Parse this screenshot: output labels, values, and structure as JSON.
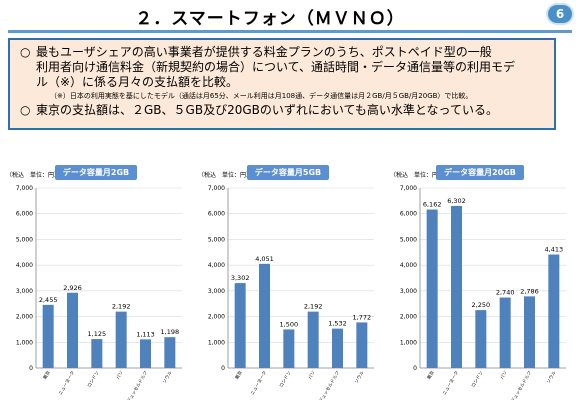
{
  "slide": {
    "title": "２．スマートフォン（ＭＶＮＯ）",
    "page_badge": "6",
    "points": [
      {
        "mark": "○",
        "line1": "最もユーザシェアの高い事業者が提供する料金プランのうち、ポストペイド型の一般",
        "line2": "利用者向け通信料金（新規契約の場合）について、通話時間・データ通信量等の利用モデ",
        "line3": "ル（※）に係る月々の支払額を比較。"
      },
      {
        "mark": "○",
        "line1": "東京の支払額は、２GB、５GB及び20GBのいずれにおいても高い水準となっている。"
      }
    ],
    "note": "（※）日本の利用実態を基にしたモデル（通話は月65分、メール利用は月108通、データ通信量は月２GB/月５GB/月20GB）で比較。"
  },
  "chart_data": [
    {
      "type": "bar",
      "title": "データ容量月2GB",
      "ylabel": "（税込　単位：円）",
      "ylim": [
        0,
        7000
      ],
      "yticks": [
        "0",
        "1,000",
        "2,000",
        "3,000",
        "4,000",
        "5,000",
        "6,000",
        "7,000"
      ],
      "categories": [
        "東京",
        "ニューヨーク",
        "ロンドン",
        "パリ",
        "デュッセルドルフ",
        "ソウル"
      ],
      "values": [
        2455,
        2926,
        1125,
        2192,
        1113,
        1198
      ],
      "labels": [
        "2,455",
        "2,926",
        "1,125",
        "2,192",
        "1,113",
        "1,198"
      ],
      "color": "#4f81bd"
    },
    {
      "type": "bar",
      "title": "データ容量月5GB",
      "ylabel": "（税込　単位：円）",
      "ylim": [
        0,
        7000
      ],
      "yticks": [
        "0",
        "1,000",
        "2,000",
        "3,000",
        "4,000",
        "5,000",
        "6,000",
        "7,000"
      ],
      "categories": [
        "東京",
        "ニューヨーク",
        "ロンドン",
        "パリ",
        "デュッセルドルフ",
        "ソウル"
      ],
      "values": [
        3302,
        4051,
        1500,
        2192,
        1532,
        1772
      ],
      "labels": [
        "3,302",
        "4,051",
        "1,500",
        "2,192",
        "1,532",
        "1,772"
      ],
      "color": "#4f81bd"
    },
    {
      "type": "bar",
      "title": "データ容量月20GB",
      "ylabel": "（税込　単位：円）",
      "ylim": [
        0,
        7000
      ],
      "yticks": [
        "0",
        "1,000",
        "2,000",
        "3,000",
        "4,000",
        "5,000",
        "6,000",
        "7,000"
      ],
      "categories": [
        "東京",
        "ニューヨーク",
        "ロンドン",
        "パリ",
        "デュッセルドルフ",
        "ソウル"
      ],
      "values": [
        6162,
        6302,
        2250,
        2740,
        2786,
        4413
      ],
      "labels": [
        "6,162",
        "6,302",
        "2,250",
        "2,740",
        "2,786",
        "4,413"
      ],
      "color": "#4f81bd"
    }
  ]
}
